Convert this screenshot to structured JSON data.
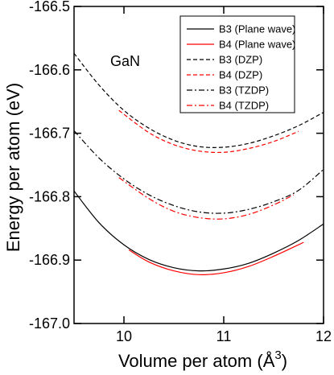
{
  "chart_data": {
    "type": "line",
    "annotation": "GaN",
    "xlabel_main": "Volume per atom (",
    "xlabel_unit": "Å",
    "xlabel_exp": "3",
    "xlabel_close": ")",
    "ylabel": "Energy per atom (eV)",
    "xlim": [
      9.5,
      12
    ],
    "ylim": [
      -167.0,
      -166.5
    ],
    "x_ticks": [
      10,
      11,
      12
    ],
    "x_tick_labels": [
      "10",
      "11",
      "12"
    ],
    "y_ticks": [
      -166.5,
      -166.6,
      -166.7,
      -166.8,
      -166.9,
      -167.0
    ],
    "y_tick_labels": [
      "-166.5",
      "-166.6",
      "-166.7",
      "-166.8",
      "-166.9",
      "-167.0"
    ],
    "grid": false,
    "legend_position": "top-right",
    "series": [
      {
        "name": "B3 (Plane wave)",
        "color": "#000000",
        "dash": "solid",
        "x": [
          9.5,
          9.75,
          10.0,
          10.25,
          10.5,
          10.75,
          11.0,
          11.25,
          11.5,
          11.75,
          12.0
        ],
        "y": [
          -166.791,
          -166.841,
          -166.876,
          -166.899,
          -166.912,
          -166.917,
          -166.914,
          -166.905,
          -166.889,
          -166.869,
          -166.843
        ]
      },
      {
        "name": "B4 (Plane wave)",
        "color": "#ff0000",
        "dash": "solid",
        "x": [
          10.05,
          10.25,
          10.5,
          10.75,
          11.0,
          11.25,
          11.5,
          11.8
        ],
        "y": [
          -166.884,
          -166.903,
          -166.917,
          -166.923,
          -166.92,
          -166.91,
          -166.894,
          -166.872
        ]
      },
      {
        "name": "B3 (DZP)",
        "color": "#000000",
        "dash": "dash",
        "x": [
          9.5,
          9.75,
          10.0,
          10.25,
          10.5,
          10.75,
          11.0,
          11.25,
          11.5,
          11.75,
          12.0
        ],
        "y": [
          -166.574,
          -166.624,
          -166.664,
          -166.692,
          -166.711,
          -166.721,
          -166.722,
          -166.716,
          -166.704,
          -166.688,
          -166.667
        ]
      },
      {
        "name": "B4 (DZP)",
        "color": "#ff0000",
        "dash": "dash",
        "x": [
          9.95,
          10.25,
          10.5,
          10.75,
          11.0,
          11.25,
          11.5,
          11.75
        ],
        "y": [
          -166.664,
          -166.699,
          -166.718,
          -166.728,
          -166.73,
          -166.724,
          -166.713,
          -166.697
        ]
      },
      {
        "name": "B3 (TZDP)",
        "color": "#000000",
        "dash": "dashdot",
        "x": [
          9.5,
          9.75,
          10.0,
          10.25,
          10.5,
          10.75,
          11.0,
          11.25,
          11.5,
          11.75,
          12.0
        ],
        "y": [
          -166.696,
          -166.739,
          -166.772,
          -166.797,
          -166.814,
          -166.824,
          -166.826,
          -166.82,
          -166.808,
          -166.79,
          -166.757
        ]
      },
      {
        "name": "B4 (TZDP)",
        "color": "#ff0000",
        "dash": "dashdot",
        "x": [
          9.95,
          10.25,
          10.5,
          10.75,
          11.0,
          11.25,
          11.5,
          11.7
        ],
        "y": [
          -166.77,
          -166.803,
          -166.823,
          -166.833,
          -166.835,
          -166.828,
          -166.813,
          -166.797
        ]
      }
    ]
  }
}
